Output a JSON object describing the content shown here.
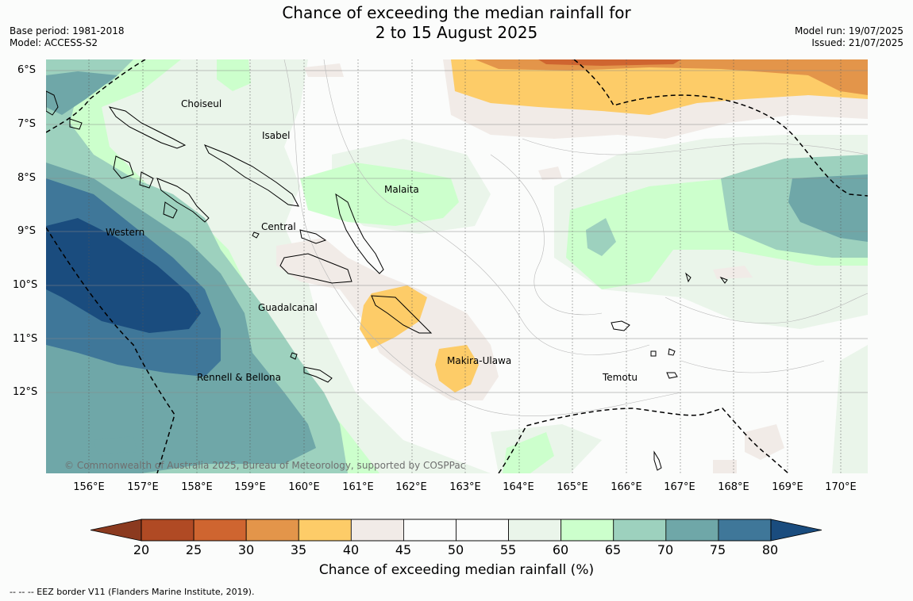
{
  "header": {
    "title_line1": "Chance of exceeding the median rainfall for",
    "title_line2": "2 to 15 August 2025",
    "base_period": "Base period: 1981-2018",
    "model": "Model: ACCESS-S2",
    "model_run": "Model run: 19/07/2025",
    "issued": "Issued: 21/07/2025"
  },
  "map": {
    "lat_labels": [
      "6°S",
      "7°S",
      "8°S",
      "9°S",
      "10°S",
      "11°S",
      "12°S"
    ],
    "lon_labels": [
      "156°E",
      "157°E",
      "158°E",
      "159°E",
      "160°E",
      "161°E",
      "162°E",
      "163°E",
      "164°E",
      "165°E",
      "166°E",
      "167°E",
      "168°E",
      "169°E",
      "170°E"
    ],
    "regions": {
      "choiseul": "Choiseul",
      "isabel": "Isabel",
      "malaita": "Malaita",
      "western": "Western",
      "central": "Central",
      "guadalcanal": "Guadalcanal",
      "makira": "Makira-Ulawa",
      "rennell": "Rennell & Bellona",
      "temotu": "Temotu"
    },
    "copyright": "© Commonwealth of Australia 2025, Bureau of Meteorology, supported by COSPPac"
  },
  "colorbar": {
    "ticks": [
      "20",
      "25",
      "30",
      "35",
      "40",
      "45",
      "50",
      "55",
      "60",
      "65",
      "70",
      "75",
      "80"
    ],
    "colors": [
      "#b04a24",
      "#cf6530",
      "#e3954a",
      "#fdcc68",
      "#f1ebe7",
      "#fbfcfb",
      "#fbfcfb",
      "#eaf5ea",
      "#ccffcc",
      "#9dd1be",
      "#6fa7a8",
      "#3f7799"
    ],
    "low_color": "#8b3a1f",
    "high_color": "#1a4c7e",
    "title": "Chance of exceeding median rainfall (%)"
  },
  "footnote": "--  --  -- EEZ border V11 (Flanders Marine Institute, 2019)."
}
